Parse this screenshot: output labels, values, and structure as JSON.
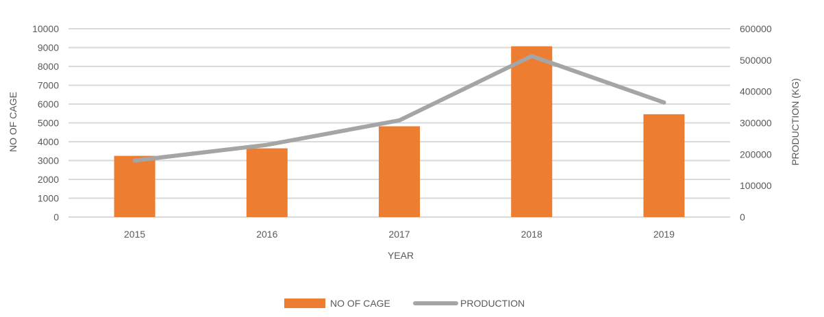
{
  "chart_data": {
    "type": "bar",
    "categories": [
      "2015",
      "2016",
      "2017",
      "2018",
      "2019"
    ],
    "series": [
      {
        "name": "NO OF CAGE",
        "type": "bar",
        "axis": "left",
        "color": "#ED7D31",
        "values": [
          3250,
          3650,
          4820,
          9070,
          5460
        ]
      },
      {
        "name": "PRODUCTION",
        "type": "line",
        "axis": "right",
        "color": "#A5A5A5",
        "values": [
          180000,
          230000,
          308000,
          513000,
          365000
        ]
      }
    ],
    "xlabel": "YEAR",
    "ylabel": "NO OF CAGE",
    "y2label": "PRODUCTION (KG)",
    "ylim": [
      0,
      10000
    ],
    "y2lim": [
      0,
      600000
    ],
    "yticks": [
      "0",
      "1000",
      "2000",
      "3000",
      "4000",
      "5000",
      "6000",
      "7000",
      "8000",
      "9000",
      "10000"
    ],
    "y2ticks": [
      "0",
      "100000",
      "200000",
      "300000",
      "400000",
      "500000",
      "600000"
    ],
    "grid": true,
    "legend": "bottom",
    "gridColor": "#D9D9D9",
    "textColor": "#595959"
  }
}
